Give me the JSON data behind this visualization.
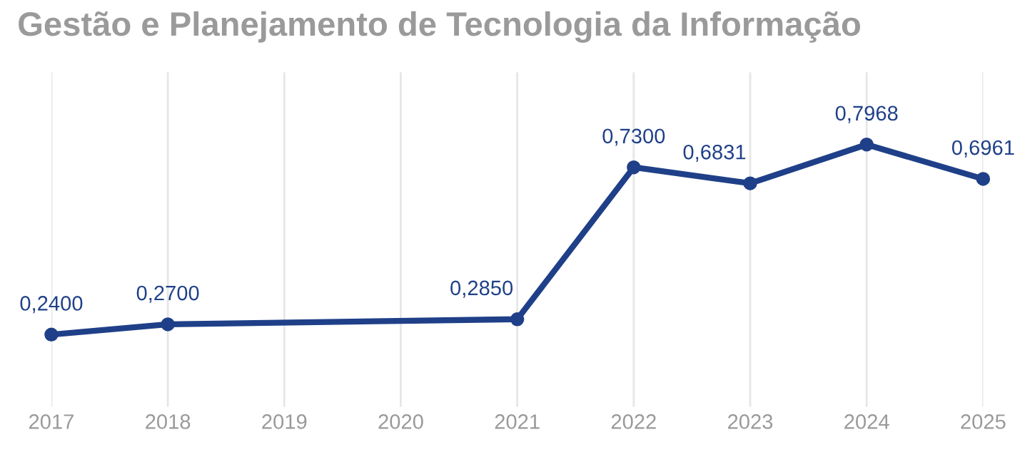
{
  "chart_data": {
    "type": "line",
    "title": "Gestão e Planejamento de Tecnologia da Informação",
    "xlim": [
      2017,
      2025
    ],
    "xticks": [
      2017,
      2018,
      2019,
      2020,
      2021,
      2022,
      2023,
      2024,
      2025
    ],
    "series": [
      {
        "color": "#1f4088",
        "x": [
          2017,
          2018,
          2021,
          2022,
          2023,
          2024,
          2025
        ],
        "values": [
          0.24,
          0.27,
          0.285,
          0.73,
          0.6831,
          0.7968,
          0.6961
        ],
        "value_labels": [
          "0,2400",
          "0,2700",
          "0,2850",
          "0,7300",
          "0,6831",
          "0,7968",
          "0,6961"
        ]
      }
    ],
    "grid": "x",
    "marker": "circle",
    "line_style": "solid",
    "tick_labels": "x",
    "legend": false
  }
}
